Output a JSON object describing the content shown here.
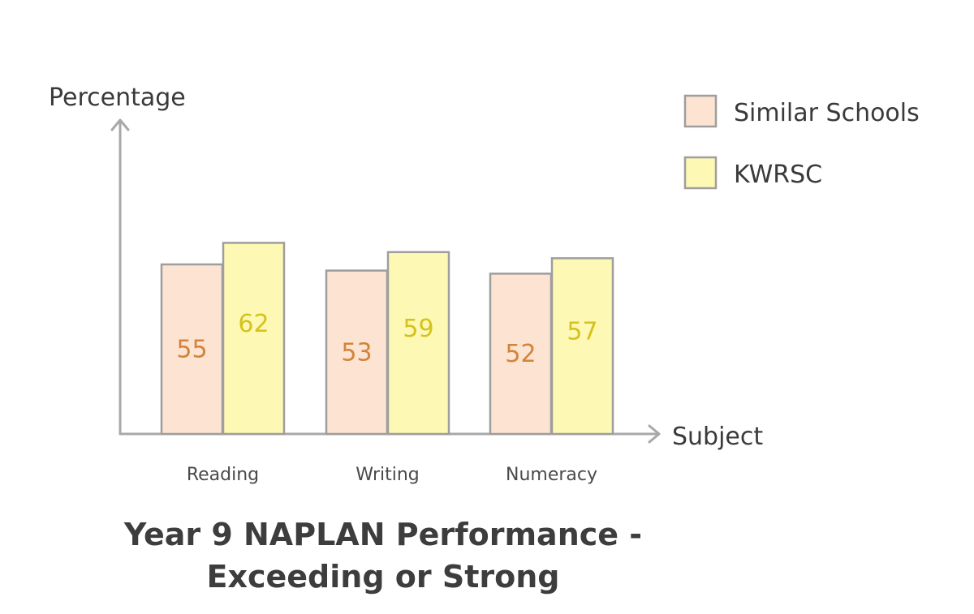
{
  "chart_data": {
    "type": "bar",
    "title_lines": [
      "Year 9 NAPLAN Performance -",
      "Exceeding or Strong"
    ],
    "xlabel": "Subject",
    "ylabel": "Percentage",
    "categories": [
      "Reading",
      "Writing",
      "Numeracy"
    ],
    "series": [
      {
        "name": "Similar Schools",
        "values": [
          55,
          53,
          52
        ],
        "fill": "#fde3d2",
        "label_color": "#d2843a"
      },
      {
        "name": "KWRSC",
        "values": [
          62,
          59,
          57
        ],
        "fill": "#fdf8b4",
        "label_color": "#d6c21e"
      }
    ],
    "ylim": [
      0,
      100
    ],
    "grid": false,
    "legend_position": "top-right",
    "axis_color": "#a8a8a8",
    "bar_stroke": "#9e9e9e"
  }
}
